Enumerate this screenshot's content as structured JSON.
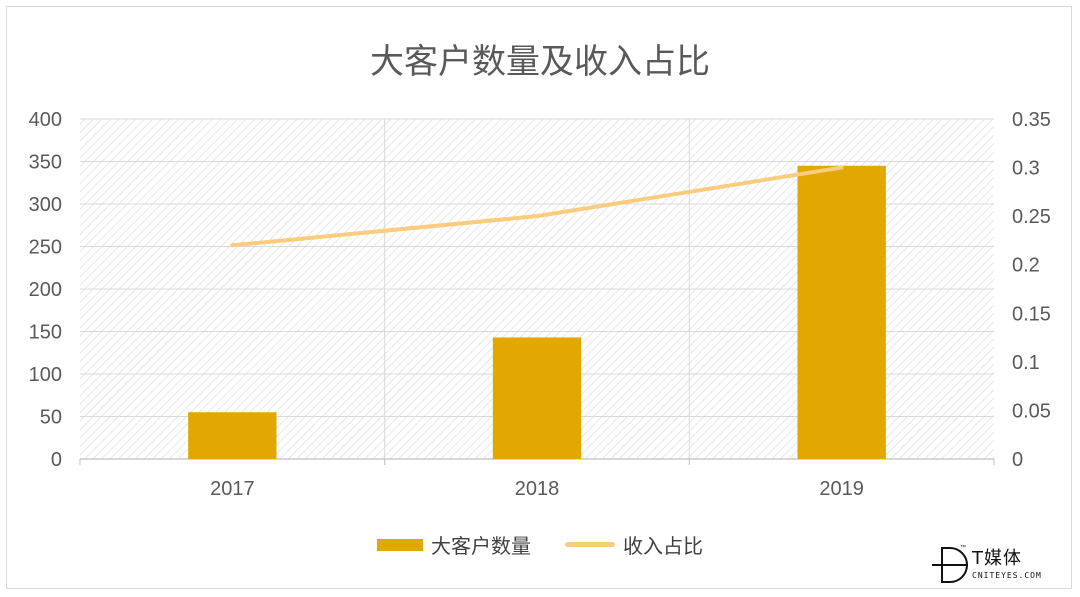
{
  "chart_data": {
    "type": "bar",
    "title": "大客户数量及收入占比",
    "categories": [
      "2017",
      "2018",
      "2019"
    ],
    "series": [
      {
        "name": "大客户数量",
        "type": "bar",
        "axis": "left",
        "values": [
          55,
          143,
          345
        ],
        "color": "#e0a800"
      },
      {
        "name": "收入占比",
        "type": "line",
        "axis": "right",
        "values": [
          0.22,
          0.25,
          0.3
        ],
        "color": "#f9cc7e"
      }
    ],
    "y_left": {
      "min": 0,
      "max": 400,
      "ticks": [
        "0",
        "50",
        "100",
        "150",
        "200",
        "250",
        "300",
        "350",
        "400"
      ]
    },
    "y_right": {
      "min": 0,
      "max": 0.35,
      "ticks": [
        "0",
        "0.05",
        "0.1",
        "0.15",
        "0.2",
        "0.25",
        "0.3",
        "0.35"
      ]
    },
    "grid": true,
    "legend_position": "bottom"
  },
  "watermark": {
    "brand": "T媒体",
    "site": "CNITEYES.COM",
    "mark": "™"
  }
}
